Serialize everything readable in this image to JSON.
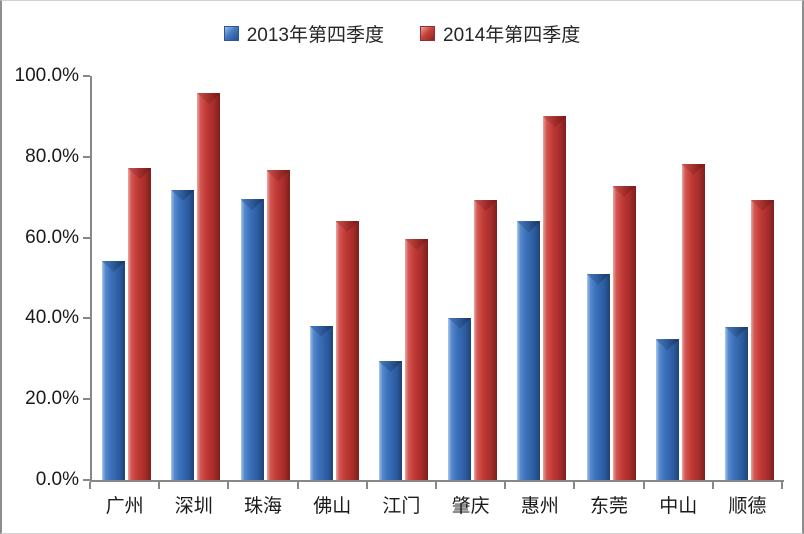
{
  "chart": {
    "accent_colors": {
      "series_2013": "#3a70ba",
      "series_2014": "#c23a36",
      "axis": "#878787"
    }
  },
  "chart_data": {
    "type": "bar",
    "title": "",
    "categories": [
      "广州",
      "深圳",
      "珠海",
      "佛山",
      "江门",
      "肇庆",
      "惠州",
      "东莞",
      "中山",
      "顺德"
    ],
    "series": [
      {
        "name": "2013年第四季度",
        "color": "#3a70ba",
        "values": [
          54.2,
          71.8,
          69.5,
          38.2,
          29.4,
          40.2,
          64.0,
          51.1,
          34.8,
          38.0
        ]
      },
      {
        "name": "2014年第四季度",
        "color": "#c23a36",
        "values": [
          77.2,
          95.8,
          76.7,
          64.1,
          59.7,
          69.3,
          90.0,
          72.8,
          78.2,
          69.3
        ]
      }
    ],
    "xlabel": "",
    "ylabel": "",
    "ylim": [
      0,
      100
    ],
    "ytick_step": 20,
    "ytick_labels": [
      "0.0%",
      "20.0%",
      "40.0%",
      "60.0%",
      "80.0%",
      "100.0%"
    ],
    "grid": false,
    "legend_position": "top-center"
  }
}
